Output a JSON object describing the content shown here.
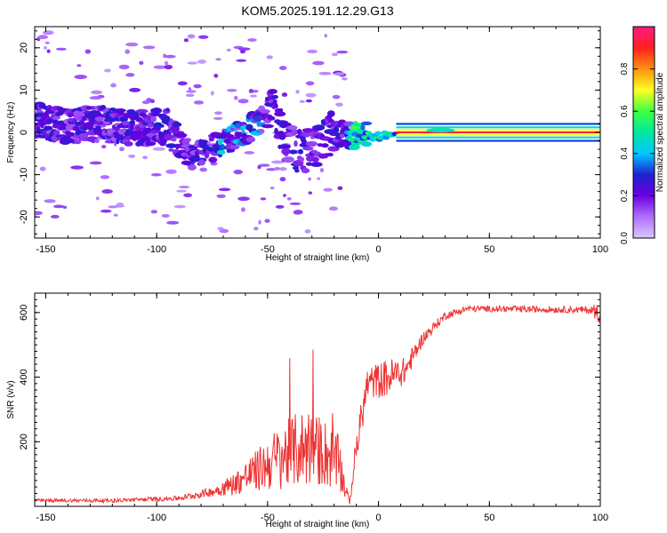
{
  "chart_data": [
    {
      "type": "heatmap",
      "title": "KOM5.2025.191.12.29.G13",
      "xlabel": "Height of straight line (km)",
      "ylabel": "Frequency (Hz)",
      "xlim": [
        -155,
        100
      ],
      "ylim": [
        -25,
        25
      ],
      "x_ticks": [
        -150,
        -100,
        -50,
        0,
        50,
        100
      ],
      "y_ticks": [
        -20,
        -10,
        0,
        10,
        20
      ],
      "colorbar": {
        "label": "Normalized spectral amplitude",
        "range": [
          0,
          1
        ],
        "ticks": [
          "0.0",
          "0.2",
          "0.4",
          "0.6",
          "0.8"
        ],
        "colormap": [
          "#d8c8ff",
          "#b070ff",
          "#6a00e0",
          "#2020d0",
          "#00c8ff",
          "#00e8a0",
          "#40ff40",
          "#ffff20",
          "#ff9010",
          "#ff2020",
          "#ff1a80"
        ]
      },
      "ridge": [
        {
          "x": -150,
          "y": 2.5
        },
        {
          "x": -140,
          "y": 1.5
        },
        {
          "x": -125,
          "y": 2.0
        },
        {
          "x": -110,
          "y": 1.0
        },
        {
          "x": -95,
          "y": 1.5
        },
        {
          "x": -85,
          "y": -6.0
        },
        {
          "x": -75,
          "y": -4.0
        },
        {
          "x": -65,
          "y": -1.0
        },
        {
          "x": -55,
          "y": 2.0
        },
        {
          "x": -47,
          "y": 5.0
        },
        {
          "x": -42,
          "y": -2.0
        },
        {
          "x": -35,
          "y": -5.0
        },
        {
          "x": -28,
          "y": -3.0
        },
        {
          "x": -20,
          "y": 0.0
        },
        {
          "x": -12,
          "y": -1.0
        },
        {
          "x": -5,
          "y": 0.0
        },
        {
          "x": 10,
          "y": 0.0
        },
        {
          "x": 100,
          "y": 0.0
        }
      ],
      "band": {
        "x_start": 8,
        "x_end": 100,
        "y": 0.0,
        "peak_amplitude": 0.95
      }
    },
    {
      "type": "line",
      "xlabel": "Height of straight line (km)",
      "ylabel": "SNR (v/v)",
      "xlim": [
        -155,
        100
      ],
      "ylim": [
        0,
        660
      ],
      "x_ticks": [
        -150,
        -100,
        -50,
        0,
        50,
        100
      ],
      "y_ticks": [
        200,
        400,
        600
      ],
      "color": "#ee3333",
      "envelope": [
        {
          "x": -155,
          "mean": 18,
          "spread": 10
        },
        {
          "x": -120,
          "mean": 18,
          "spread": 12
        },
        {
          "x": -90,
          "mean": 25,
          "spread": 15
        },
        {
          "x": -75,
          "mean": 45,
          "spread": 30
        },
        {
          "x": -65,
          "mean": 70,
          "spread": 70
        },
        {
          "x": -55,
          "mean": 110,
          "spread": 130
        },
        {
          "x": -45,
          "mean": 150,
          "spread": 200
        },
        {
          "x": -35,
          "mean": 180,
          "spread": 240
        },
        {
          "x": -25,
          "mean": 170,
          "spread": 220
        },
        {
          "x": -18,
          "mean": 130,
          "spread": 180
        },
        {
          "x": -13,
          "mean": 10,
          "spread": 8
        },
        {
          "x": -10,
          "mean": 180,
          "spread": 120
        },
        {
          "x": -5,
          "mean": 380,
          "spread": 100
        },
        {
          "x": 5,
          "mean": 400,
          "spread": 120
        },
        {
          "x": 12,
          "mean": 420,
          "spread": 80
        },
        {
          "x": 20,
          "mean": 520,
          "spread": 40
        },
        {
          "x": 30,
          "mean": 590,
          "spread": 25
        },
        {
          "x": 40,
          "mean": 612,
          "spread": 20
        },
        {
          "x": 70,
          "mean": 610,
          "spread": 20
        },
        {
          "x": 95,
          "mean": 608,
          "spread": 22
        },
        {
          "x": 100,
          "mean": 600,
          "spread": 70
        }
      ]
    }
  ]
}
